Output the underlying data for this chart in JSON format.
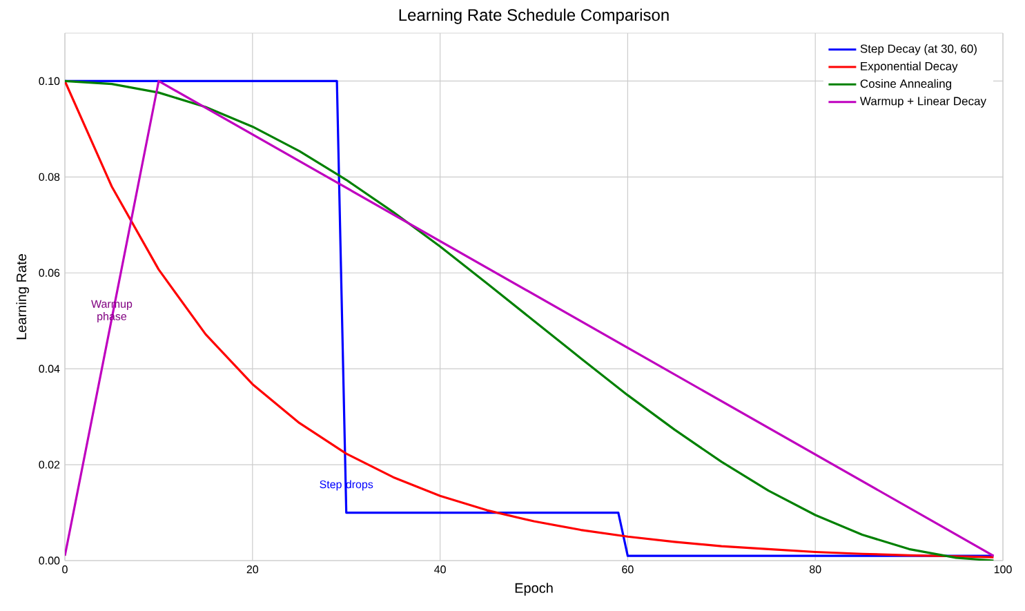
{
  "chart_data": {
    "type": "line",
    "title": "Learning Rate Schedule Comparison",
    "xlabel": "Epoch",
    "ylabel": "Learning Rate",
    "xlim": [
      0,
      100
    ],
    "ylim": [
      0,
      0.11
    ],
    "xticks": [
      0,
      20,
      40,
      60,
      80,
      100
    ],
    "yticks": [
      {
        "value": 0,
        "label": "0.00"
      },
      {
        "value": 0.02,
        "label": "0.02"
      },
      {
        "value": 0.04,
        "label": "0.04"
      },
      {
        "value": 0.06,
        "label": "0.06"
      },
      {
        "value": 0.08,
        "label": "0.08"
      },
      {
        "value": 0.1,
        "label": "0.10"
      }
    ],
    "grid": true,
    "legend": "top right",
    "series": [
      {
        "name": "Step Decay (at 30, 60)",
        "color": "#0000ff",
        "x": [
          0,
          29,
          30,
          59,
          60,
          99
        ],
        "values": [
          0.1,
          0.1,
          0.01,
          0.01,
          0.001,
          0.001
        ]
      },
      {
        "name": "Exponential Decay",
        "color": "#ff0000",
        "x": [
          0,
          5,
          10,
          15,
          20,
          25,
          30,
          35,
          40,
          45,
          50,
          55,
          60,
          65,
          70,
          75,
          80,
          85,
          90,
          95,
          99
        ],
        "values": [
          0.1,
          0.078,
          0.0607,
          0.0472,
          0.0368,
          0.0287,
          0.0223,
          0.0174,
          0.0135,
          0.0105,
          0.0082,
          0.0064,
          0.005,
          0.0039,
          0.003,
          0.0024,
          0.0018,
          0.0014,
          0.0011,
          0.0009,
          0.0007
        ]
      },
      {
        "name": "Cosine Annealing",
        "color": "#008000",
        "x": [
          0,
          5,
          10,
          15,
          20,
          25,
          30,
          35,
          40,
          45,
          50,
          55,
          60,
          65,
          70,
          75,
          80,
          85,
          90,
          95,
          99
        ],
        "values": [
          0.1,
          0.0994,
          0.0976,
          0.0946,
          0.0905,
          0.0854,
          0.0794,
          0.0727,
          0.0655,
          0.0578,
          0.05,
          0.0422,
          0.0345,
          0.0273,
          0.0206,
          0.0146,
          0.0095,
          0.0054,
          0.0024,
          0.0006,
          0.0
        ]
      },
      {
        "name": "Warmup + Linear Decay",
        "color": "#bf00bf",
        "x": [
          0,
          10,
          99
        ],
        "values": [
          0.001,
          0.1,
          0.001
        ]
      }
    ],
    "annotations": [
      {
        "text": "Warmup phase",
        "x": 5,
        "y": 0.052
      },
      {
        "text": "Step drops",
        "x": 30,
        "y": 0.0157
      }
    ]
  }
}
